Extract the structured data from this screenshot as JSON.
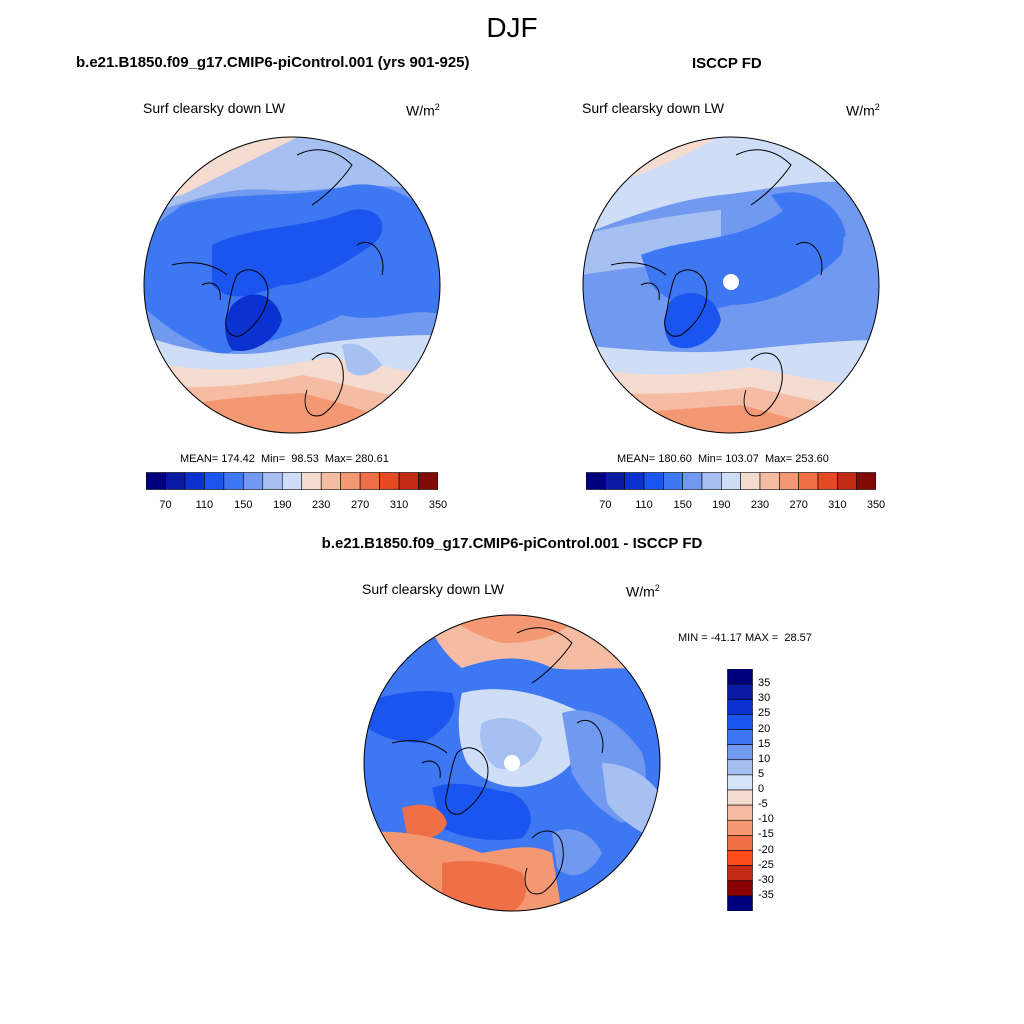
{
  "title": "DJF",
  "panels": [
    {
      "id": "model",
      "title": "b.e21.B1850.f09_g17.CMIP6-piControl.001 (yrs 901-925)",
      "variable": "Surf clearsky down LW",
      "units_base": "W/m",
      "units_exp": "2",
      "stats": "MEAN= 174.42  Min=  98.53  Max= 280.61"
    },
    {
      "id": "obs",
      "title": "ISCCP FD",
      "variable": "Surf clearsky down LW",
      "units_base": "W/m",
      "units_exp": "2",
      "stats": "MEAN= 180.60  Min= 103.07  Max= 253.60"
    },
    {
      "id": "diff",
      "title": "b.e21.B1850.f09_g17.CMIP6-piControl.001 - ISCCP FD",
      "variable": "Surf clearsky down LW",
      "units": "W/m",
      "units_exp": "2",
      "stats": "MIN = -41.17 MAX =  28.57"
    }
  ],
  "colorbar_abs": {
    "colors": [
      "#00007f",
      "#0a1aa3",
      "#0b32d0",
      "#1a55ef",
      "#3e77f2",
      "#7199f0",
      "#a6c0f2",
      "#cfdef6",
      "#f4dcd0",
      "#f6bca3",
      "#f49873",
      "#ef7046",
      "#e54a25",
      "#c22a13",
      "#7f0a06"
    ],
    "tick_labels": [
      "70",
      "110",
      "150",
      "190",
      "230",
      "270",
      "310",
      "350"
    ]
  },
  "colorbar_diff": {
    "colors": [
      "#00007f",
      "#0a1aa3",
      "#0b32d0",
      "#1a55ef",
      "#3e77f2",
      "#7199f0",
      "#a6c0f2",
      "#d6e2f7",
      "#f4dcd0",
      "#f6bca3",
      "#f49873",
      "#ef7046",
      "#ff4d1a",
      "#c22a13",
      "#8b0000"
    ],
    "tick_labels": [
      "35",
      "30",
      "25",
      "20",
      "15",
      "10",
      "5",
      "0",
      "-5",
      "-10",
      "-15",
      "-20",
      "-25",
      "-30",
      "-35"
    ]
  }
}
